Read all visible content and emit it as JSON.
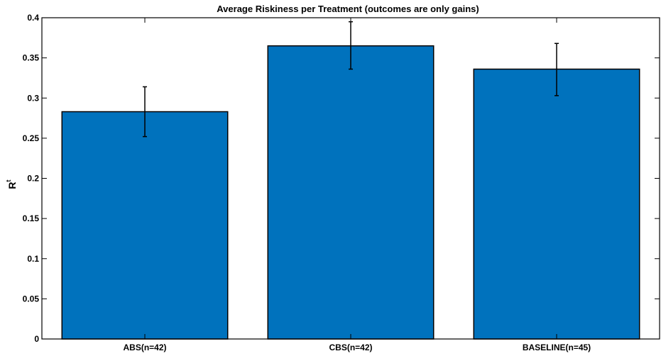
{
  "chart_data": {
    "type": "bar",
    "title": "Average Riskiness per Treatment (outcomes are only gains)",
    "ylabel_main": "R",
    "ylabel_sup": "t",
    "xlabel": "",
    "categories": [
      "ABS(n=42)",
      "CBS(n=42)",
      "BASELINE(n=45)"
    ],
    "values": [
      0.283,
      0.365,
      0.336
    ],
    "error_low": [
      0.252,
      0.336,
      0.303
    ],
    "error_high": [
      0.314,
      0.395,
      0.368
    ],
    "ylim": [
      0,
      0.4
    ],
    "yticks": [
      0,
      0.05,
      0.1,
      0.15,
      0.2,
      0.25,
      0.3,
      0.35,
      0.4
    ],
    "ytick_labels": [
      "0",
      "0.05",
      "0.1",
      "0.15",
      "0.2",
      "0.25",
      "0.3",
      "0.35",
      "0.4"
    ],
    "grid": false,
    "bar_color": "#0072bd",
    "edge_color": "#000000"
  }
}
